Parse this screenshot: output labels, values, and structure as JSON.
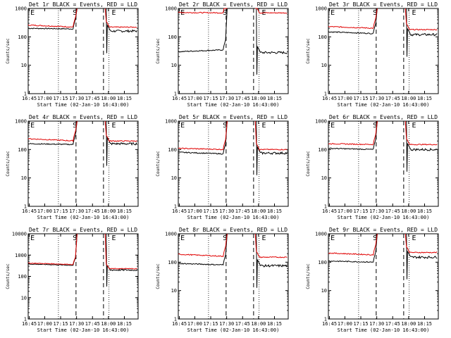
{
  "chart_data": [
    {
      "type": "line",
      "title": "Det 1r BLACK = Events, RED = LLD",
      "xlabel": "Start Time (02-Jan-10 16:43:00)",
      "ylabel": "Counts/sec",
      "x_ticks": [
        "16:45",
        "17:00",
        "17:15",
        "17:30",
        "17:45",
        "18:00",
        "18:15"
      ],
      "y_ticks": [
        "1",
        "10",
        "100",
        "1000"
      ],
      "y_scale": "log",
      "ylim": [
        1,
        1000
      ],
      "markers": [
        "E",
        "S",
        "E"
      ],
      "series": [
        {
          "name": "BLACK = Events",
          "color": "#000000",
          "level_start": 200,
          "level_end": 190,
          "post_level": 160,
          "saturates": false
        },
        {
          "name": "RED = LLD",
          "color": "#e00000",
          "level_start": 260,
          "level_end": 220,
          "post_level": 220,
          "saturates": true
        }
      ]
    },
    {
      "type": "line",
      "title": "Det 2r BLACK = Events, RED = LLD",
      "xlabel": "Start Time (02-Jan-10 16:43:00)",
      "ylabel": "Counts/sec",
      "x_ticks": [
        "16:45",
        "17:00",
        "17:15",
        "17:30",
        "17:45",
        "18:00",
        "18:15"
      ],
      "y_ticks": [
        "1",
        "10",
        "100",
        "1000"
      ],
      "y_scale": "log",
      "ylim": [
        1,
        1000
      ],
      "markers": [
        "E",
        "S",
        "E"
      ],
      "series": [
        {
          "name": "BLACK = Events",
          "color": "#000000",
          "level_start": 30,
          "level_end": 35,
          "post_level": 28,
          "saturates": false
        },
        {
          "name": "RED = LLD",
          "color": "#e00000",
          "level_start": 720,
          "level_end": 700,
          "post_level": 700,
          "saturates": true
        }
      ]
    },
    {
      "type": "line",
      "title": "Det 3r BLACK = Events, RED = LLD",
      "xlabel": "Start Time (02-Jan-10 16:43:00)",
      "ylabel": "Counts/sec",
      "x_ticks": [
        "16:45",
        "17:00",
        "17:15",
        "17:30",
        "17:45",
        "18:00",
        "18:15"
      ],
      "y_ticks": [
        "1",
        "10",
        "100",
        "1000"
      ],
      "y_scale": "log",
      "ylim": [
        1,
        1000
      ],
      "markers": [
        "E",
        "S",
        "E"
      ],
      "series": [
        {
          "name": "BLACK = Events",
          "color": "#000000",
          "level_start": 150,
          "level_end": 130,
          "post_level": 120,
          "saturates": false
        },
        {
          "name": "RED = LLD",
          "color": "#e00000",
          "level_start": 230,
          "level_end": 200,
          "post_level": 180,
          "saturates": true
        }
      ]
    },
    {
      "type": "line",
      "title": "Det 4r BLACK = Events, RED = LLD",
      "xlabel": "Start Time (02-Jan-10 16:43:00)",
      "ylabel": "Counts/sec",
      "x_ticks": [
        "16:45",
        "17:00",
        "17:15",
        "17:30",
        "17:45",
        "18:00",
        "18:15"
      ],
      "y_ticks": [
        "1",
        "10",
        "100",
        "1000"
      ],
      "y_scale": "log",
      "ylim": [
        1,
        1000
      ],
      "markers": [
        "E",
        "S",
        "E"
      ],
      "series": [
        {
          "name": "BLACK = Events",
          "color": "#000000",
          "level_start": 160,
          "level_end": 150,
          "post_level": 160,
          "saturates": false
        },
        {
          "name": "RED = LLD",
          "color": "#e00000",
          "level_start": 240,
          "level_end": 200,
          "post_level": 200,
          "saturates": true
        }
      ]
    },
    {
      "type": "line",
      "title": "Det 5r BLACK = Events, RED = LLD",
      "xlabel": "Start Time (02-Jan-10 16:43:00)",
      "ylabel": "Counts/sec",
      "x_ticks": [
        "16:45",
        "17:00",
        "17:15",
        "17:30",
        "17:45",
        "18:00",
        "18:15"
      ],
      "y_ticks": [
        "1",
        "10",
        "100",
        "1000"
      ],
      "y_scale": "log",
      "ylim": [
        1,
        1000
      ],
      "markers": [
        "E",
        "S",
        "E"
      ],
      "series": [
        {
          "name": "BLACK = Events",
          "color": "#000000",
          "level_start": 80,
          "level_end": 70,
          "post_level": 75,
          "saturates": false
        },
        {
          "name": "RED = LLD",
          "color": "#e00000",
          "level_start": 110,
          "level_end": 100,
          "post_level": 100,
          "saturates": true
        }
      ]
    },
    {
      "type": "line",
      "title": "Det 6r BLACK = Events, RED = LLD",
      "xlabel": "Start Time (02-Jan-10 16:43:00)",
      "ylabel": "Counts/sec",
      "x_ticks": [
        "16:45",
        "17:00",
        "17:15",
        "17:30",
        "17:45",
        "18:00",
        "18:15"
      ],
      "y_ticks": [
        "1",
        "10",
        "100",
        "1000"
      ],
      "y_scale": "log",
      "ylim": [
        1,
        1000
      ],
      "markers": [
        "E",
        "S",
        "E"
      ],
      "series": [
        {
          "name": "BLACK = Events",
          "color": "#000000",
          "level_start": 110,
          "level_end": 100,
          "post_level": 100,
          "saturates": false
        },
        {
          "name": "RED = LLD",
          "color": "#e00000",
          "level_start": 160,
          "level_end": 150,
          "post_level": 150,
          "saturates": true
        }
      ]
    },
    {
      "type": "line",
      "title": "Det 7r BLACK = Events, RED = LLD",
      "xlabel": "Start Time (02-Jan-10 16:43:00)",
      "ylabel": "Counts/sec",
      "x_ticks": [
        "16:45",
        "17:00",
        "17:15",
        "17:30",
        "17:45",
        "18:00",
        "18:15"
      ],
      "y_ticks": [
        "1",
        "10",
        "100",
        "1000",
        "10000"
      ],
      "y_scale": "log",
      "ylim": [
        1,
        10000
      ],
      "markers": [
        "E",
        "S",
        "E"
      ],
      "series": [
        {
          "name": "BLACK = Events",
          "color": "#000000",
          "level_start": 380,
          "level_end": 330,
          "post_level": 200,
          "saturates": false
        },
        {
          "name": "RED = LLD",
          "color": "#e00000",
          "level_start": 420,
          "level_end": 360,
          "post_level": 230,
          "saturates": true
        }
      ]
    },
    {
      "type": "line",
      "title": "Det 8r BLACK = Events, RED = LLD",
      "xlabel": "Start Time (02-Jan-10 16:43:00)",
      "ylabel": "Counts/sec",
      "x_ticks": [
        "16:45",
        "17:00",
        "17:15",
        "17:30",
        "17:45",
        "18:00",
        "18:15"
      ],
      "y_ticks": [
        "1",
        "10",
        "100",
        "1000"
      ],
      "y_scale": "log",
      "ylim": [
        1,
        1000
      ],
      "markers": [
        "E",
        "S",
        "E"
      ],
      "series": [
        {
          "name": "BLACK = Events",
          "color": "#000000",
          "level_start": 90,
          "level_end": 80,
          "post_level": 75,
          "saturates": false
        },
        {
          "name": "RED = LLD",
          "color": "#e00000",
          "level_start": 190,
          "level_end": 160,
          "post_level": 150,
          "saturates": true
        }
      ]
    },
    {
      "type": "line",
      "title": "Det 9r BLACK = Events, RED = LLD",
      "xlabel": "Start Time (02-Jan-10 16:43:00)",
      "ylabel": "Counts/sec",
      "x_ticks": [
        "16:45",
        "17:00",
        "17:15",
        "17:30",
        "17:45",
        "18:00",
        "18:15"
      ],
      "y_ticks": [
        "1",
        "10",
        "100",
        "1000"
      ],
      "y_scale": "log",
      "ylim": [
        1,
        1000
      ],
      "markers": [
        "E",
        "S",
        "E"
      ],
      "series": [
        {
          "name": "BLACK = Events",
          "color": "#000000",
          "level_start": 110,
          "level_end": 100,
          "post_level": 150,
          "saturates": false
        },
        {
          "name": "RED = LLD",
          "color": "#e00000",
          "level_start": 210,
          "level_end": 180,
          "post_level": 220,
          "saturates": true
        }
      ]
    }
  ]
}
